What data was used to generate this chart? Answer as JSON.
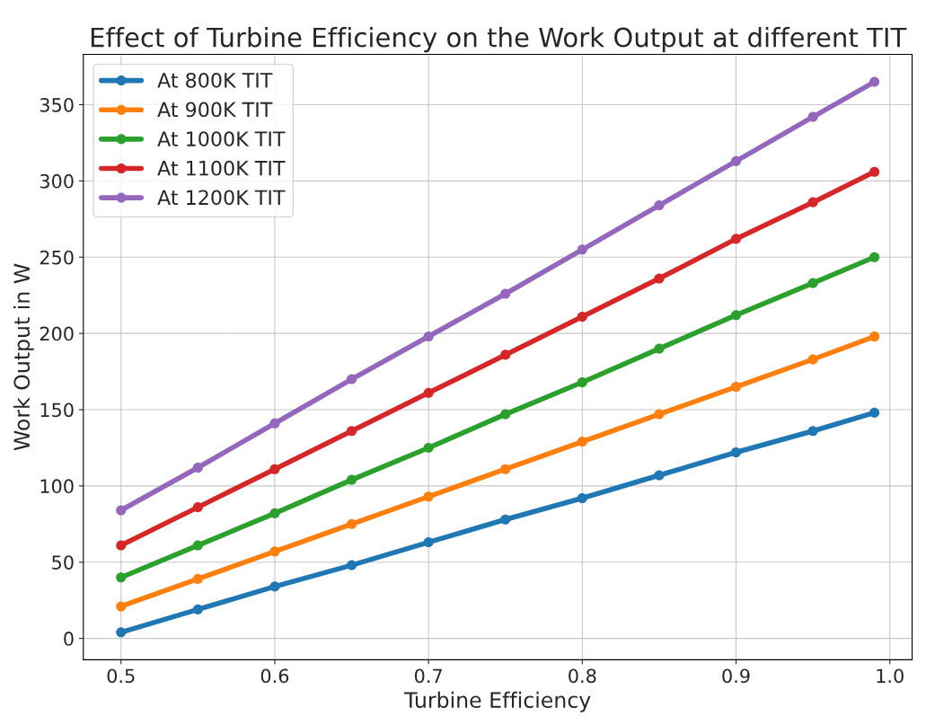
{
  "chart_data": {
    "type": "line",
    "title": "Effect of Turbine Efficiency on the Work Output at different TIT",
    "xlabel": "Turbine Efficiency",
    "ylabel": "Work Output in W",
    "x": [
      0.5,
      0.55,
      0.6,
      0.65,
      0.7,
      0.75,
      0.8,
      0.85,
      0.9,
      0.95,
      0.99
    ],
    "series": [
      {
        "name": "At 800K TIT",
        "color": "#1f77b4",
        "values": [
          4,
          19,
          34,
          48,
          63,
          78,
          92,
          107,
          122,
          136,
          148
        ]
      },
      {
        "name": "At 900K TIT",
        "color": "#ff7f0e",
        "values": [
          21,
          39,
          57,
          75,
          93,
          111,
          129,
          147,
          165,
          183,
          198
        ]
      },
      {
        "name": "At 1000K TIT",
        "color": "#2ca02c",
        "values": [
          40,
          61,
          82,
          104,
          125,
          147,
          168,
          190,
          212,
          233,
          250
        ]
      },
      {
        "name": "At 1100K TIT",
        "color": "#d62728",
        "values": [
          61,
          86,
          111,
          136,
          161,
          186,
          211,
          236,
          262,
          286,
          306
        ]
      },
      {
        "name": "At 1200K TIT",
        "color": "#9467bd",
        "values": [
          84,
          112,
          141,
          170,
          198,
          226,
          255,
          284,
          313,
          342,
          365
        ]
      }
    ],
    "xlim": [
      0.4755,
      1.0145
    ],
    "xticks": [
      {
        "value": 0.5,
        "label": "0.5"
      },
      {
        "value": 0.6,
        "label": "0.6"
      },
      {
        "value": 0.7,
        "label": "0.7"
      },
      {
        "value": 0.8,
        "label": "0.8"
      },
      {
        "value": 0.9,
        "label": "0.9"
      },
      {
        "value": 1.0,
        "label": "1.0"
      }
    ],
    "ylim": [
      -14,
      383
    ],
    "yticks": [
      0,
      50,
      100,
      150,
      200,
      250,
      300,
      350
    ],
    "grid": true,
    "legend": "top left",
    "marker": "circle",
    "line_style": "solid"
  }
}
